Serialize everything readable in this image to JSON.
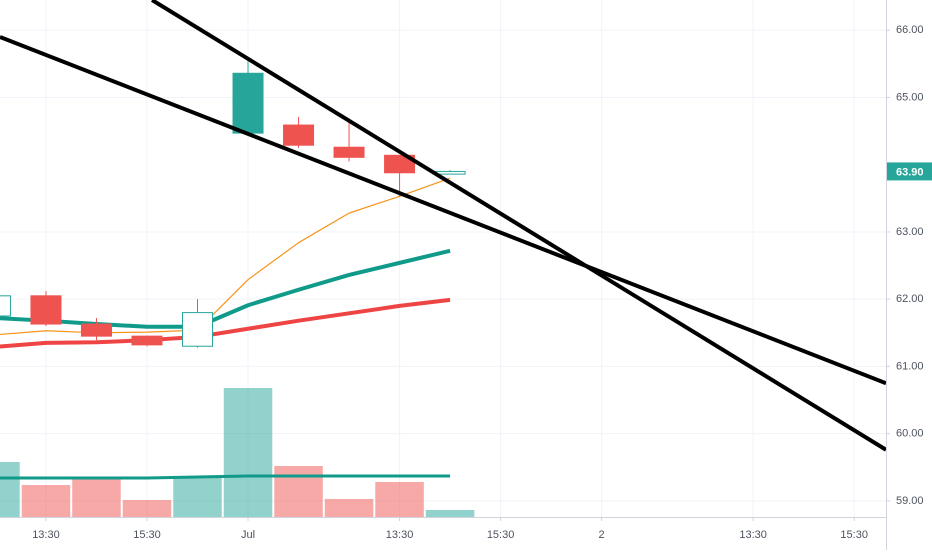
{
  "chart_data": {
    "type": "candlestick",
    "xlim": [
      0.09,
      17.63
    ],
    "ylim": [
      58.76,
      66.45
    ],
    "yticks": [
      {
        "value": 59,
        "label": "59.00"
      },
      {
        "value": 60,
        "label": "60.00"
      },
      {
        "value": 61,
        "label": "61.00"
      },
      {
        "value": 62,
        "label": "62.00"
      },
      {
        "value": 63,
        "label": "63.00"
      },
      {
        "value": 65,
        "label": "65.00"
      },
      {
        "value": 66,
        "label": "66.00"
      }
    ],
    "xticks": [
      {
        "value": 1,
        "label": "13:30"
      },
      {
        "value": 3,
        "label": "15:30"
      },
      {
        "value": 5,
        "label": "Jul"
      },
      {
        "value": 8,
        "label": "13:30"
      },
      {
        "value": 10,
        "label": "15:30"
      },
      {
        "value": 12,
        "label": "2"
      },
      {
        "value": 15,
        "label": "13:30"
      },
      {
        "value": 17,
        "label": "15:30"
      }
    ],
    "grid": true,
    "up_color": "#26a69a",
    "down_color": "#ef5350",
    "ohlc": {
      "open": [
        61.75,
        62.05,
        61.63,
        61.45,
        61.3,
        65.36,
        64.59,
        64.26,
        64.14,
        63.86
      ],
      "high": [
        62.05,
        62.12,
        61.72,
        61.46,
        62.0,
        65.55,
        64.71,
        64.65,
        64.14,
        63.92
      ],
      "low": [
        61.75,
        61.6,
        61.39,
        61.3,
        61.28,
        64.45,
        64.25,
        64.05,
        63.52,
        63.86
      ],
      "close": [
        62.05,
        61.63,
        61.45,
        61.32,
        61.8,
        64.47,
        64.29,
        64.11,
        63.88,
        63.9
      ]
    },
    "series": [
      {
        "color": "#f7931a",
        "width": 1.2,
        "values": [
          61.47,
          61.53,
          61.5,
          61.51,
          61.54,
          62.29,
          62.84,
          63.28,
          63.53,
          63.8
        ]
      },
      {
        "color": "#ef4444",
        "width": 4,
        "values": [
          61.29,
          61.35,
          61.36,
          61.39,
          61.44,
          61.56,
          61.68,
          61.79,
          61.9,
          61.99
        ]
      },
      {
        "color": "#0f9a8a",
        "width": 4,
        "values": [
          61.72,
          61.68,
          61.63,
          61.59,
          61.59,
          61.91,
          62.14,
          62.36,
          62.54,
          62.72
        ]
      }
    ],
    "volume_ylim": [
      0,
      140
    ],
    "volume": [
      55,
      32,
      39,
      17,
      41,
      129,
      51,
      18,
      35,
      7
    ],
    "volume_ma": {
      "color": "#0f9a8a",
      "values": [
        39,
        39,
        39,
        39,
        40,
        41,
        41,
        41,
        41,
        41
      ]
    },
    "trend_lines": [
      {
        "color": "#000000",
        "x": [
          3.1,
          17.63
        ],
        "y": [
          66.45,
          59.76
        ]
      },
      {
        "color": "#000000",
        "x": [
          0.09,
          17.63
        ],
        "y": [
          65.9,
          60.75
        ]
      }
    ],
    "last_price": {
      "value": 63.9,
      "label": "63.90"
    }
  }
}
